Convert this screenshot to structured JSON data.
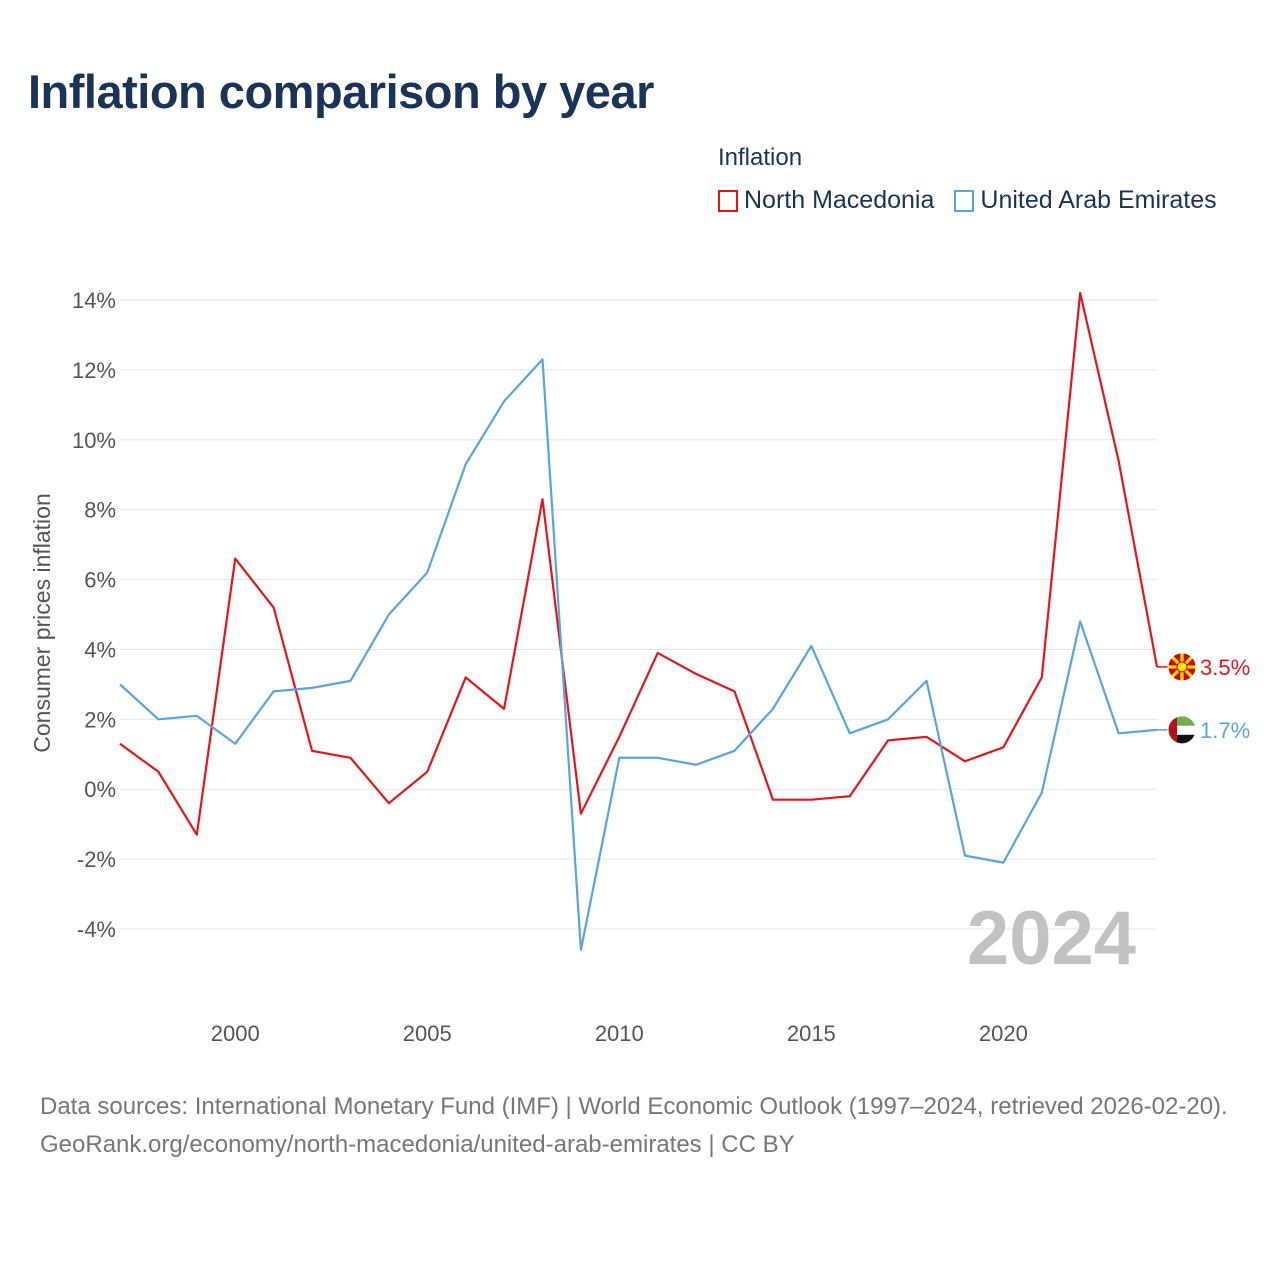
{
  "title": "Inflation comparison by year",
  "legend": {
    "title": "Inflation",
    "items": [
      {
        "label": "North Macedonia",
        "color": "#e8141c"
      },
      {
        "label": "United Arab Emirates",
        "color": "#5aa5e0"
      }
    ]
  },
  "footer": {
    "sources": "Data sources: International Monetary Fund (IMF) | World Economic Outlook (1997–2024, retrieved 2026-02-20).",
    "credit": "GeoRank.org/economy/north-macedonia/united-arab-emirates | CC BY"
  },
  "chart_data": {
    "type": "line",
    "title": "Inflation comparison by year",
    "xlabel": "",
    "ylabel": "Consumer prices inflation",
    "watermark": "2024",
    "xlim": [
      1997,
      2024
    ],
    "ylim": [
      -4,
      14
    ],
    "x_ticks": [
      2000,
      2005,
      2010,
      2015,
      2020
    ],
    "y_ticks": [
      14,
      12,
      10,
      8,
      6,
      4,
      2,
      0,
      -2,
      -4
    ],
    "y_tick_labels": [
      "14%",
      "12%",
      "10%",
      "8%",
      "6%",
      "4%",
      "2%",
      "0%",
      "-2%",
      "-4%"
    ],
    "x": [
      1997,
      1998,
      1999,
      2000,
      2001,
      2002,
      2003,
      2004,
      2005,
      2006,
      2007,
      2008,
      2009,
      2010,
      2011,
      2012,
      2013,
      2014,
      2015,
      2016,
      2017,
      2018,
      2019,
      2020,
      2021,
      2022,
      2023,
      2024
    ],
    "series": [
      {
        "name": "North Macedonia",
        "color": "#e8141c",
        "end_label": "3.5%",
        "flag": "north-macedonia-flag-icon",
        "values": [
          1.3,
          0.5,
          -1.3,
          6.6,
          5.2,
          1.1,
          0.9,
          -0.4,
          0.5,
          3.2,
          2.3,
          8.3,
          -0.7,
          1.5,
          3.9,
          3.3,
          2.8,
          -0.3,
          -0.3,
          -0.2,
          1.4,
          1.5,
          0.8,
          1.2,
          3.2,
          14.2,
          9.4,
          3.5
        ]
      },
      {
        "name": "United Arab Emirates",
        "color": "#5aa5e0",
        "end_label": "1.7%",
        "flag": "uae-flag-icon",
        "values": [
          3.0,
          2.0,
          2.1,
          1.3,
          2.8,
          2.9,
          3.1,
          5.0,
          6.2,
          9.3,
          11.1,
          12.3,
          -4.6,
          0.9,
          0.9,
          0.7,
          1.1,
          2.3,
          4.1,
          1.6,
          2.0,
          3.1,
          -1.9,
          -2.1,
          -0.1,
          4.8,
          1.6,
          1.7
        ]
      }
    ]
  }
}
